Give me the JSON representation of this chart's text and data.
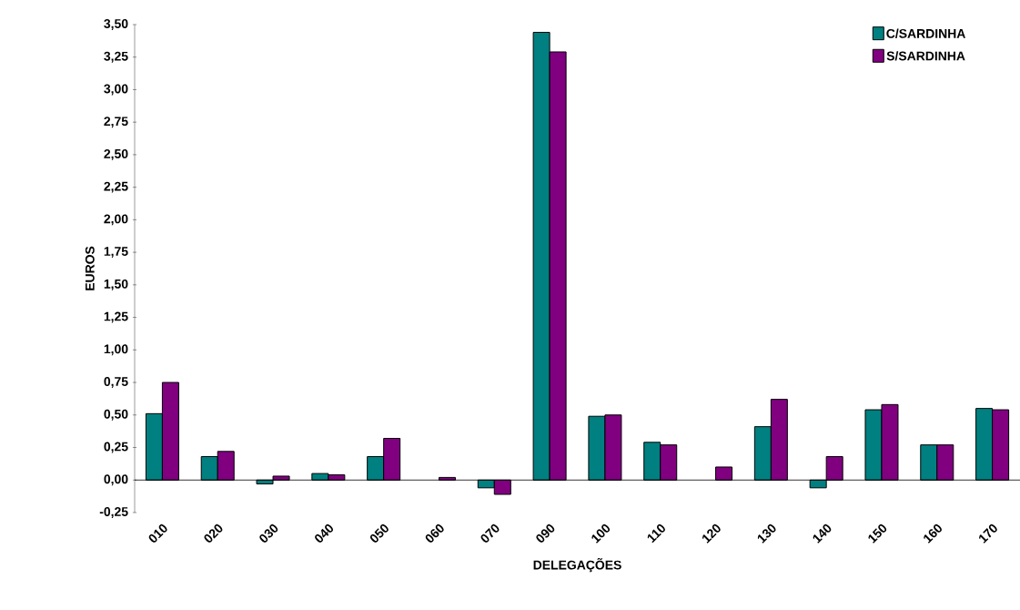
{
  "chart_data": {
    "type": "bar",
    "xlabel": "DELEGAÇÕES",
    "ylabel": "EUROS",
    "categories": [
      "010",
      "020",
      "030",
      "040",
      "050",
      "060",
      "070",
      "090",
      "100",
      "110",
      "120",
      "130",
      "140",
      "150",
      "160",
      "170"
    ],
    "series": [
      {
        "name": "C/SARDINHA",
        "color": "#008080",
        "values": [
          0.51,
          0.18,
          -0.03,
          0.05,
          0.18,
          null,
          -0.06,
          3.44,
          0.49,
          0.29,
          null,
          0.41,
          -0.06,
          0.54,
          0.27,
          0.55
        ]
      },
      {
        "name": "S/SARDINHA",
        "color": "#800080",
        "values": [
          0.75,
          0.22,
          0.03,
          0.04,
          0.32,
          0.02,
          -0.11,
          3.29,
          0.5,
          0.27,
          0.1,
          0.62,
          0.18,
          0.58,
          0.27,
          0.54
        ]
      }
    ],
    "ylim": [
      -0.25,
      3.5
    ],
    "yticks": [
      {
        "value": -0.25,
        "label": "-0,25"
      },
      {
        "value": 0,
        "label": "0,00"
      },
      {
        "value": 0.25,
        "label": "0,25"
      },
      {
        "value": 0.5,
        "label": "0,50"
      },
      {
        "value": 0.75,
        "label": "0,75"
      },
      {
        "value": 1,
        "label": "1,00"
      },
      {
        "value": 1.25,
        "label": "1,25"
      },
      {
        "value": 1.5,
        "label": "1,50"
      },
      {
        "value": 1.75,
        "label": "1,75"
      },
      {
        "value": 2,
        "label": "2,00"
      },
      {
        "value": 2.25,
        "label": "2,25"
      },
      {
        "value": 2.5,
        "label": "2,50"
      },
      {
        "value": 2.75,
        "label": "2,75"
      },
      {
        "value": 3,
        "label": "3,00"
      },
      {
        "value": 3.25,
        "label": "3,25"
      },
      {
        "value": 3.5,
        "label": "3,50"
      }
    ],
    "legend": "top right"
  }
}
